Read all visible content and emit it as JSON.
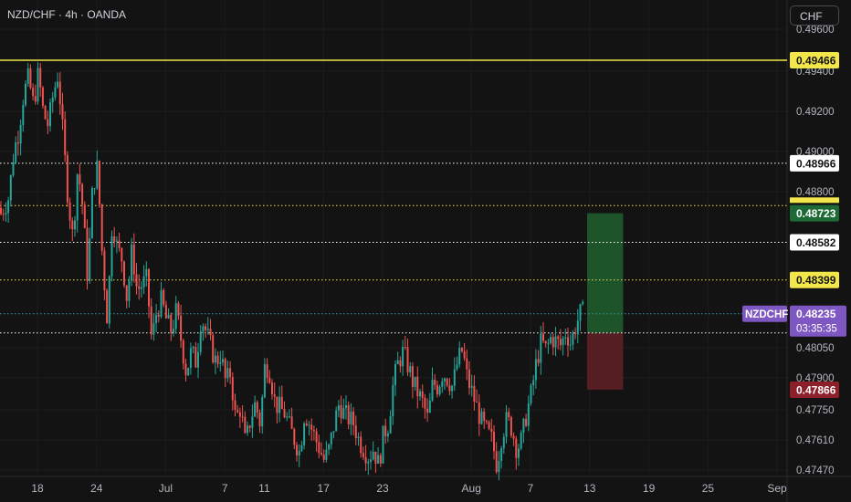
{
  "header": {
    "symbol_label": "NZD/CHF · 4h · OANDA"
  },
  "currency_button": "CHF",
  "chart_data": {
    "type": "candlestick",
    "symbol": "NZDCHF",
    "timeframe": "4h",
    "broker": "OANDA",
    "y_axis_ticks": [
      "0.49600",
      "0.49400",
      "0.49200",
      "0.49000",
      "0.48800",
      "0.48050",
      "0.47900",
      "0.47750",
      "0.47610",
      "0.47470"
    ],
    "x_axis_ticks": [
      {
        "label": "18",
        "date": "2025-06-18"
      },
      {
        "label": "24",
        "date": "2025-06-24"
      },
      {
        "label": "Jul",
        "date": "2025-07-01"
      },
      {
        "label": "7",
        "date": "2025-07-07"
      },
      {
        "label": "11",
        "date": "2025-07-11"
      },
      {
        "label": "17",
        "date": "2025-07-17"
      },
      {
        "label": "23",
        "date": "2025-07-23"
      },
      {
        "label": "Aug",
        "date": "2025-08-01"
      },
      {
        "label": "7",
        "date": "2025-08-07"
      },
      {
        "label": "13",
        "date": "2025-08-13"
      },
      {
        "label": "19",
        "date": "2025-08-19"
      },
      {
        "label": "25",
        "date": "2025-08-25"
      },
      {
        "label": "Sep",
        "date": "2025-09-01"
      }
    ],
    "horizontal_levels": [
      {
        "price": 0.49466,
        "label": "0.49466",
        "color": "#f2e64a",
        "style": "solid"
      },
      {
        "price": 0.48966,
        "label": "0.48966",
        "color": "#ffffff",
        "style": "dotted"
      },
      {
        "price": 0.4876,
        "label": "",
        "color": "#f2e64a",
        "style": "dotted"
      },
      {
        "price": 0.48582,
        "label": "0.48582",
        "color": "#ffffff",
        "style": "dotted"
      },
      {
        "price": 0.48399,
        "label": "0.48399",
        "color": "#f2e64a",
        "style": "dotted"
      },
      {
        "price": 0.48142,
        "label": "",
        "color": "#ffffff",
        "style": "dotted"
      }
    ],
    "position": {
      "entry": 0.48142,
      "take_profit": 0.48723,
      "take_profit_label": "0.48723",
      "stop_loss": 0.47866,
      "stop_loss_label": "0.47866",
      "start_date": "2025-08-12",
      "end_date": "2025-08-15"
    },
    "current_price": {
      "symbol": "NZDCHF",
      "price": 0.48235,
      "price_label": "0.48235",
      "countdown": "03:35:35"
    },
    "close_path": [
      [
        "2025-06-14",
        0.487
      ],
      [
        "2025-06-15",
        0.488
      ],
      [
        "2025-06-15",
        0.4902
      ],
      [
        "2025-06-16",
        0.4912
      ],
      [
        "2025-06-16",
        0.493
      ],
      [
        "2025-06-17",
        0.4938
      ],
      [
        "2025-06-17",
        0.4925
      ],
      [
        "2025-06-18",
        0.494
      ],
      [
        "2025-06-18",
        0.4921
      ],
      [
        "2025-06-19",
        0.4915
      ],
      [
        "2025-06-19",
        0.493
      ],
      [
        "2025-06-20",
        0.494
      ],
      [
        "2025-06-20",
        0.491
      ],
      [
        "2025-06-21",
        0.488
      ],
      [
        "2025-06-21",
        0.486
      ],
      [
        "2025-06-22",
        0.4895
      ],
      [
        "2025-06-22",
        0.4875
      ],
      [
        "2025-06-23",
        0.484
      ],
      [
        "2025-06-23",
        0.4885
      ],
      [
        "2025-06-24",
        0.4895
      ],
      [
        "2025-06-24",
        0.485
      ],
      [
        "2025-06-25",
        0.482
      ],
      [
        "2025-06-25",
        0.487
      ],
      [
        "2025-06-26",
        0.4855
      ],
      [
        "2025-06-26",
        0.485
      ],
      [
        "2025-06-27",
        0.483
      ],
      [
        "2025-06-27",
        0.4855
      ],
      [
        "2025-06-28",
        0.4835
      ],
      [
        "2025-06-29",
        0.484
      ],
      [
        "2025-06-29",
        0.481
      ],
      [
        "2025-06-30",
        0.4825
      ],
      [
        "2025-06-30",
        0.483
      ],
      [
        "2025-07-01",
        0.482
      ],
      [
        "2025-07-01",
        0.4815
      ],
      [
        "2025-07-02",
        0.4825
      ],
      [
        "2025-07-02",
        0.481
      ],
      [
        "2025-07-03",
        0.4795
      ],
      [
        "2025-07-03",
        0.4805
      ],
      [
        "2025-07-04",
        0.48
      ],
      [
        "2025-07-04",
        0.4822
      ],
      [
        "2025-07-05",
        0.4815
      ],
      [
        "2025-07-06",
        0.48
      ],
      [
        "2025-07-06",
        0.4804
      ],
      [
        "2025-07-07",
        0.479
      ],
      [
        "2025-07-07",
        0.4795
      ],
      [
        "2025-07-08",
        0.4772
      ],
      [
        "2025-07-08",
        0.4778
      ],
      [
        "2025-07-09",
        0.476
      ],
      [
        "2025-07-09",
        0.4772
      ],
      [
        "2025-07-10",
        0.478
      ],
      [
        "2025-07-10",
        0.477
      ],
      [
        "2025-07-11",
        0.48
      ],
      [
        "2025-07-11",
        0.4795
      ],
      [
        "2025-07-12",
        0.478
      ],
      [
        "2025-07-13",
        0.4775
      ],
      [
        "2025-07-13",
        0.4768
      ],
      [
        "2025-07-14",
        0.4762
      ],
      [
        "2025-07-14",
        0.4756
      ],
      [
        "2025-07-15",
        0.4776
      ],
      [
        "2025-07-15",
        0.477
      ],
      [
        "2025-07-16",
        0.4764
      ],
      [
        "2025-07-16",
        0.4758
      ],
      [
        "2025-07-17",
        0.4752
      ],
      [
        "2025-07-17",
        0.4758
      ],
      [
        "2025-07-18",
        0.477
      ],
      [
        "2025-07-18",
        0.478
      ],
      [
        "2025-07-19",
        0.4775
      ],
      [
        "2025-07-20",
        0.477
      ],
      [
        "2025-07-20",
        0.4762
      ],
      [
        "2025-07-21",
        0.4758
      ],
      [
        "2025-07-21",
        0.4754
      ],
      [
        "2025-07-22",
        0.4758
      ],
      [
        "2025-07-22",
        0.475
      ],
      [
        "2025-07-23",
        0.4765
      ],
      [
        "2025-07-23",
        0.477
      ],
      [
        "2025-07-24",
        0.479
      ],
      [
        "2025-07-24",
        0.48
      ],
      [
        "2025-07-25",
        0.4805
      ],
      [
        "2025-07-25",
        0.4798
      ],
      [
        "2025-07-26",
        0.479
      ],
      [
        "2025-07-27",
        0.478
      ],
      [
        "2025-07-27",
        0.4772
      ],
      [
        "2025-07-28",
        0.479
      ],
      [
        "2025-07-28",
        0.4788
      ],
      [
        "2025-07-29",
        0.4795
      ],
      [
        "2025-07-29",
        0.4792
      ],
      [
        "2025-07-30",
        0.4788
      ],
      [
        "2025-07-30",
        0.48
      ],
      [
        "2025-07-31",
        0.4806
      ],
      [
        "2025-07-31",
        0.4792
      ],
      [
        "2025-08-01",
        0.4785
      ],
      [
        "2025-08-02",
        0.477
      ],
      [
        "2025-08-03",
        0.4762
      ],
      [
        "2025-08-03",
        0.475
      ],
      [
        "2025-08-04",
        0.4765
      ],
      [
        "2025-08-04",
        0.4772
      ],
      [
        "2025-08-05",
        0.4768
      ],
      [
        "2025-08-05",
        0.4758
      ],
      [
        "2025-08-06",
        0.4762
      ],
      [
        "2025-08-06",
        0.4775
      ],
      [
        "2025-08-07",
        0.4785
      ],
      [
        "2025-08-07",
        0.48
      ],
      [
        "2025-08-08",
        0.481
      ],
      [
        "2025-08-08",
        0.4806
      ],
      [
        "2025-08-09",
        0.4812
      ],
      [
        "2025-08-10",
        0.4808
      ],
      [
        "2025-08-10",
        0.4815
      ],
      [
        "2025-08-11",
        0.4809
      ],
      [
        "2025-08-11",
        0.4818
      ],
      [
        "2025-08-12",
        0.4824
      ]
    ]
  }
}
